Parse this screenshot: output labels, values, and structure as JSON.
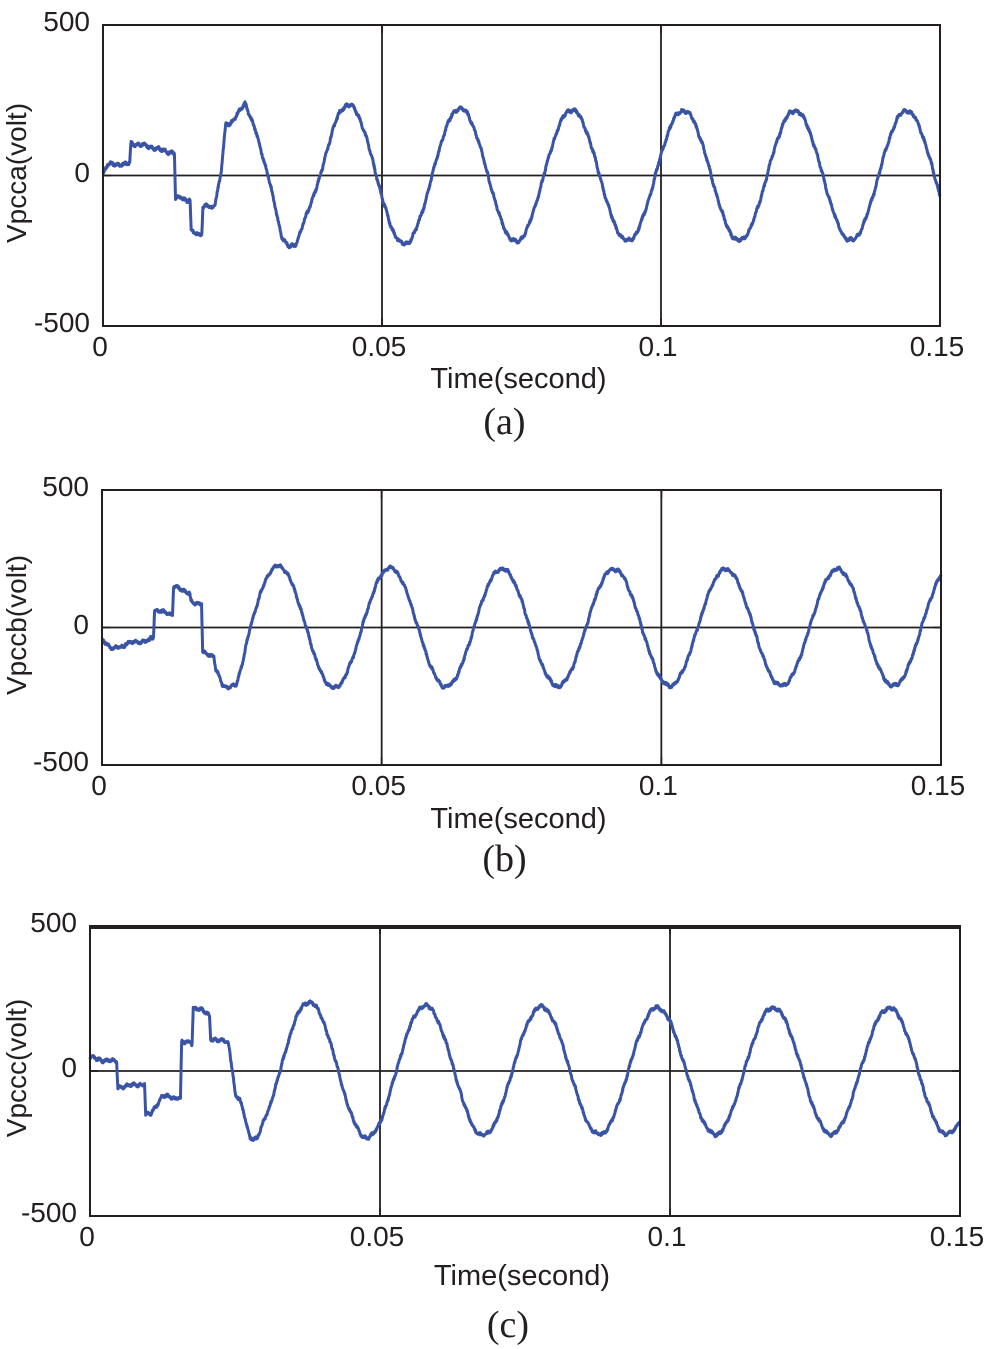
{
  "figure": {
    "background": "#ffffff",
    "axis_color": "#231f20",
    "subplots": [
      {
        "id": "a",
        "caption": "(a)",
        "ylabel": "Vpcca(volt)",
        "xlabel": "Time(second)",
        "y_tick_labels": [
          "500",
          "0",
          "-500"
        ],
        "x_tick_labels": [
          "0",
          "0.05",
          "0.1",
          "0.15"
        ]
      },
      {
        "id": "b",
        "caption": "(b)",
        "ylabel": "Vpccb(volt)",
        "xlabel": "Time(second)",
        "y_tick_labels": [
          "500",
          "0",
          "-500"
        ],
        "x_tick_labels": [
          "0",
          "0.05",
          "0.1",
          "0.15"
        ]
      },
      {
        "id": "c",
        "caption": "(c)",
        "ylabel": "Vpccc(volt)",
        "xlabel": "Time(second)",
        "y_tick_labels": [
          "500",
          "0",
          "-500"
        ],
        "x_tick_labels": [
          "0",
          "0.05",
          "0.1",
          "0.15"
        ]
      }
    ]
  },
  "chart_data": [
    {
      "type": "line",
      "title": "(a)",
      "xlabel": "Time(second)",
      "ylabel": "Vpcca(volt)",
      "xlim": [
        0,
        0.15
      ],
      "ylim": [
        -500,
        500
      ],
      "x_ticks": [
        0,
        0.05,
        0.1,
        0.15
      ],
      "y_ticks": [
        -500,
        0,
        500
      ],
      "x_gridlines": [
        0.05,
        0.1
      ],
      "zero_line": true,
      "legend": "none",
      "series": [
        {
          "name": "Vpcca",
          "color": "#3a54a5",
          "description": "Phase-a PCC voltage: distorted stepped transient for first ~2 cycles, then clean 50 Hz sine ~220 V peak",
          "steady_state": {
            "amplitude": 215,
            "frequency_hz": 50,
            "sine_zero_cross_up_t": 0.039,
            "amp_extra": 25,
            "amp_decay": 0.02
          },
          "transient_points": [
            [
              0,
              8
            ],
            [
              0.0008,
              36
            ],
            [
              0.0046,
              38
            ],
            [
              0.0048,
              42
            ],
            [
              0.005,
              106
            ],
            [
              0.0075,
              100
            ],
            [
              0.0128,
              73
            ],
            [
              0.013,
              -78
            ],
            [
              0.014,
              -70
            ],
            [
              0.015,
              -84
            ],
            [
              0.0156,
              -80
            ],
            [
              0.0158,
              -186
            ],
            [
              0.017,
              -195
            ],
            [
              0.0177,
              -192
            ],
            [
              0.0179,
              -106
            ],
            [
              0.0186,
              -100
            ],
            [
              0.0196,
              -110
            ],
            [
              0.02,
              -96
            ],
            [
              0.0211,
              0
            ],
            [
              0.022,
              168
            ],
            [
              0.0229,
              174
            ],
            [
              0.0255,
              240
            ],
            [
              0.0266,
              185
            ],
            [
              0.0273,
              152
            ],
            [
              0.0296,
              0
            ],
            [
              0.032,
              -200
            ],
            [
              0.0332,
              -238
            ],
            [
              0.0345,
              -230
            ],
            [
              0.0365,
              -130
            ],
            [
              0.039,
              0
            ]
          ],
          "noise": {
            "f1": 830,
            "h1": 3.5,
            "f2": 347,
            "h2": 2.5,
            "rnd": 4
          }
        }
      ]
    },
    {
      "type": "line",
      "title": "(b)",
      "xlabel": "Time(second)",
      "ylabel": "Vpccb(volt)",
      "xlim": [
        0,
        0.15
      ],
      "ylim": [
        -500,
        500
      ],
      "x_ticks": [
        0,
        0.05,
        0.1,
        0.15
      ],
      "y_ticks": [
        -500,
        0,
        500
      ],
      "x_gridlines": [
        0.05,
        0.1
      ],
      "zero_line": true,
      "legend": "none",
      "series": [
        {
          "name": "Vpccb",
          "color": "#3a54a5",
          "description": "Phase-b PCC voltage: stepped transient, then clean 50 Hz sine ~220 V peak",
          "steady_state": {
            "amplitude": 212,
            "frequency_hz": 50,
            "sine_zero_cross_up_t": 0.0265,
            "amp_extra": 15,
            "amp_decay": 0.02
          },
          "transient_points": [
            [
              0,
              -45
            ],
            [
              0.001,
              -65
            ],
            [
              0.002,
              -75
            ],
            [
              0.004,
              -70
            ],
            [
              0.0042,
              -56
            ],
            [
              0.007,
              -52
            ],
            [
              0.0085,
              -48
            ],
            [
              0.0087,
              -38
            ],
            [
              0.0092,
              -34
            ],
            [
              0.0094,
              62
            ],
            [
              0.012,
              52
            ],
            [
              0.0126,
              45
            ],
            [
              0.0128,
              148
            ],
            [
              0.014,
              142
            ],
            [
              0.0157,
              122
            ],
            [
              0.0159,
              92
            ],
            [
              0.0178,
              86
            ],
            [
              0.018,
              -92
            ],
            [
              0.02,
              -104
            ],
            [
              0.0203,
              -148
            ],
            [
              0.0215,
              -208
            ],
            [
              0.0225,
              -218
            ],
            [
              0.024,
              -210
            ],
            [
              0.0252,
              -120
            ],
            [
              0.0265,
              0
            ]
          ],
          "noise": {
            "f1": 811,
            "h1": 3.5,
            "f2": 389,
            "h2": 2.5,
            "rnd": 4
          }
        }
      ]
    },
    {
      "type": "line",
      "title": "(c)",
      "xlabel": "Time(second)",
      "ylabel": "Vpccc(volt)",
      "xlim": [
        0,
        0.15
      ],
      "ylim": [
        -500,
        500
      ],
      "x_ticks": [
        0,
        0.05,
        0.1,
        0.15
      ],
      "y_ticks": [
        -500,
        0,
        500
      ],
      "x_gridlines": [
        0.05,
        0.1
      ],
      "zero_line": true,
      "legend": "none",
      "series": [
        {
          "name": "Vpccc",
          "color": "#3a54a5",
          "description": "Phase-c PCC voltage: stepped transient, then clean 50 Hz sine ~220 V peak",
          "steady_state": {
            "amplitude": 218,
            "frequency_hz": 50,
            "sine_zero_cross_up_t": 0.0328,
            "amp_extra": 25,
            "amp_decay": 0.02
          },
          "transient_points": [
            [
              0,
              46
            ],
            [
              0.002,
              38
            ],
            [
              0.0046,
              32
            ],
            [
              0.0048,
              -56
            ],
            [
              0.007,
              -50
            ],
            [
              0.0094,
              -44
            ],
            [
              0.0096,
              -152
            ],
            [
              0.0105,
              -148
            ],
            [
              0.0125,
              -85
            ],
            [
              0.0148,
              -96
            ],
            [
              0.015,
              -90
            ],
            [
              0.0156,
              -92
            ],
            [
              0.0158,
              100
            ],
            [
              0.0176,
              95
            ],
            [
              0.0178,
              218
            ],
            [
              0.019,
              214
            ],
            [
              0.0206,
              190
            ],
            [
              0.0208,
              112
            ],
            [
              0.0238,
              100
            ],
            [
              0.0246,
              0
            ],
            [
              0.0251,
              -88
            ],
            [
              0.0258,
              -95
            ],
            [
              0.0276,
              -230
            ],
            [
              0.0288,
              -234
            ],
            [
              0.031,
              -120
            ],
            [
              0.0328,
              0
            ]
          ],
          "noise": {
            "f1": 853,
            "h1": 3.5,
            "f2": 311,
            "h2": 2.5,
            "rnd": 4
          }
        }
      ]
    }
  ]
}
